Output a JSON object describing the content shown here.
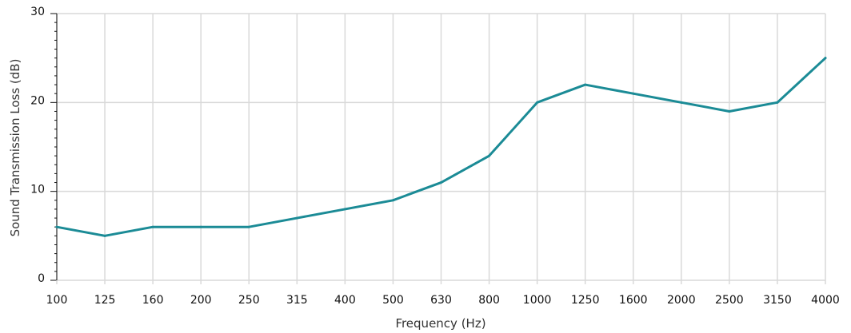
{
  "chart_data": {
    "type": "line",
    "title": "",
    "xlabel": "Frequency (Hz)",
    "ylabel": "Sound Transmission Loss (dB)",
    "categories": [
      "100",
      "125",
      "160",
      "200",
      "250",
      "315",
      "400",
      "500",
      "630",
      "800",
      "1000",
      "1250",
      "1600",
      "2000",
      "2500",
      "3150",
      "4000"
    ],
    "series": [
      {
        "values": [
          6,
          5,
          6,
          6,
          6,
          7,
          8,
          9,
          11,
          14,
          20,
          22,
          21,
          20,
          19,
          20,
          25
        ]
      }
    ],
    "ylim": [
      0,
      30
    ],
    "yticks": [
      0,
      10,
      20,
      30
    ],
    "grid": true,
    "colors": {
      "line": "#1b8b96",
      "grid": "#d9d9d9",
      "axis": "#111111"
    }
  }
}
